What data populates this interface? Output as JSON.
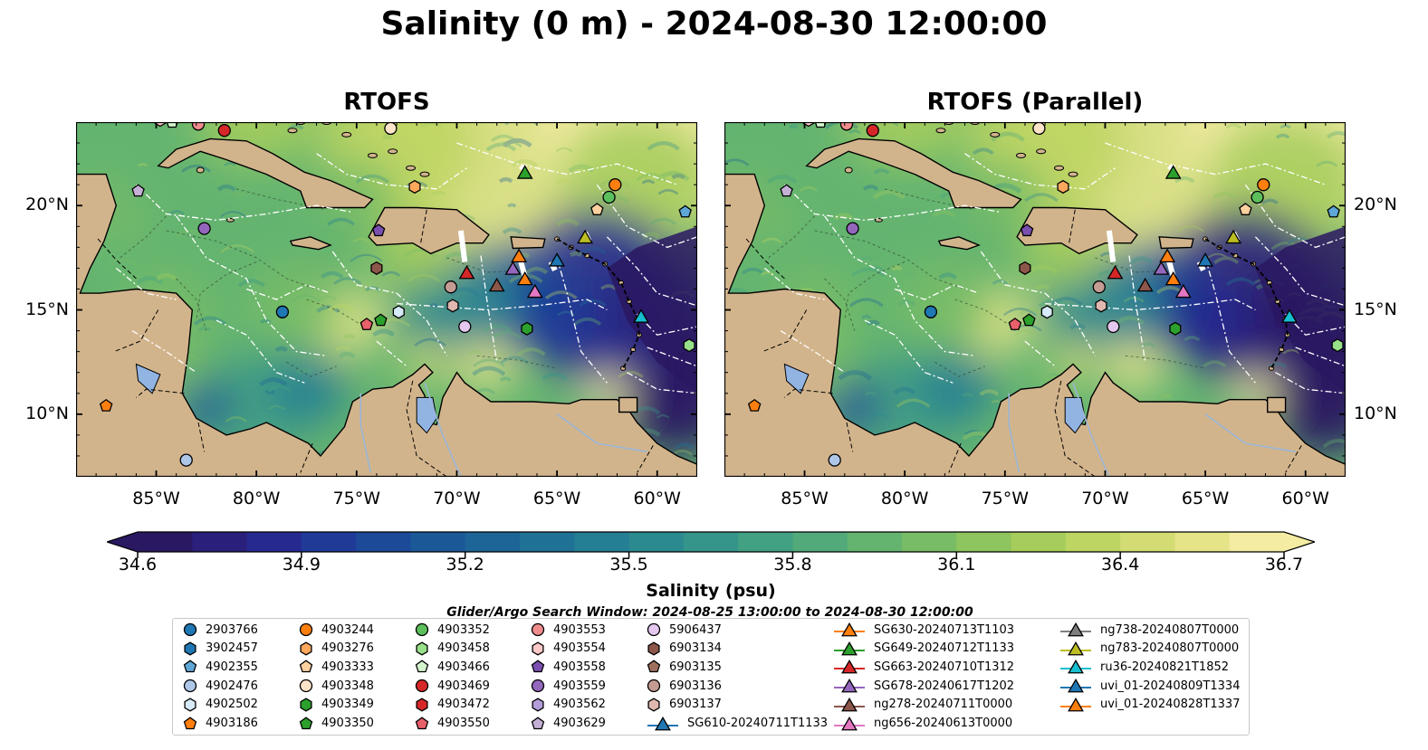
{
  "title": "Salinity (0 m) - 2024-08-30 12:00:00",
  "panels": [
    {
      "title": "RTOFS"
    },
    {
      "title": "RTOFS (Parallel)"
    }
  ],
  "map": {
    "lon_ticks": [
      "85°W",
      "80°W",
      "75°W",
      "70°W",
      "65°W",
      "60°W"
    ],
    "lat_ticks": [
      "20°N",
      "15°N",
      "10°N"
    ],
    "extent": {
      "lon": [
        -89,
        -58
      ],
      "lat": [
        7,
        24
      ]
    },
    "colors": {
      "land": "#d2b48c",
      "lake": "#92b4e3",
      "river": "#9ab6d8",
      "boundary": "#000000",
      "eez": "#ffffff"
    }
  },
  "colorbar": {
    "label": "Salinity (psu)",
    "ticks": [
      "34.6",
      "34.9",
      "35.2",
      "35.5",
      "35.8",
      "36.1",
      "36.4",
      "36.7"
    ],
    "range": [
      34.6,
      36.7
    ],
    "extend": "both",
    "colors": [
      "#2a1862",
      "#2a1f7a",
      "#26298f",
      "#203a97",
      "#1c4a99",
      "#1b5898",
      "#1d6597",
      "#1f7296",
      "#247e94",
      "#2b8a90",
      "#35958a",
      "#42a083",
      "#52aa7a",
      "#64b470",
      "#78bd66",
      "#8ec55e",
      "#a6cd5c",
      "#bdd563",
      "#d2dc72",
      "#e5e488",
      "#f3eca2"
    ]
  },
  "search_window": "Glider/Argo Search Window: 2024-08-25 13:00:00 to 2024-08-30 12:00:00",
  "legend": [
    {
      "label": "2903766",
      "marker": "circle",
      "color": "#1f77b4"
    },
    {
      "label": "3902457",
      "marker": "hexagon",
      "color": "#1f77b4"
    },
    {
      "label": "4902355",
      "marker": "pentagon",
      "color": "#5ea7d6"
    },
    {
      "label": "4902476",
      "marker": "circle",
      "color": "#aec7e8"
    },
    {
      "label": "4902502",
      "marker": "hexagon",
      "color": "#d6eaf8"
    },
    {
      "label": "4903186",
      "marker": "pentagon",
      "color": "#ff7f0e"
    },
    {
      "label": "4903244",
      "marker": "circle",
      "color": "#ff7f0e"
    },
    {
      "label": "4903276",
      "marker": "hexagon",
      "color": "#ffa85c"
    },
    {
      "label": "4903333",
      "marker": "pentagon",
      "color": "#ffd0a0"
    },
    {
      "label": "4903348",
      "marker": "circle",
      "color": "#fde4c8"
    },
    {
      "label": "4903349",
      "marker": "hexagon",
      "color": "#2ca02c"
    },
    {
      "label": "4903350",
      "marker": "pentagon",
      "color": "#2ca02c"
    },
    {
      "label": "4903352",
      "marker": "circle",
      "color": "#5cbf5c"
    },
    {
      "label": "4903458",
      "marker": "hexagon",
      "color": "#98df8a"
    },
    {
      "label": "4903466",
      "marker": "pentagon",
      "color": "#d4f5cc"
    },
    {
      "label": "4903469",
      "marker": "circle",
      "color": "#d62728"
    },
    {
      "label": "4903472",
      "marker": "hexagon",
      "color": "#d62728"
    },
    {
      "label": "4903550",
      "marker": "pentagon",
      "color": "#e8606a"
    },
    {
      "label": "4903553",
      "marker": "circle",
      "color": "#f08c8c"
    },
    {
      "label": "4903554",
      "marker": "hexagon",
      "color": "#fcc8c8"
    },
    {
      "label": "4903558",
      "marker": "pentagon",
      "color": "#7b4fb0"
    },
    {
      "label": "4903559",
      "marker": "circle",
      "color": "#9467bd"
    },
    {
      "label": "4903562",
      "marker": "hexagon",
      "color": "#b39ddb"
    },
    {
      "label": "4903629",
      "marker": "pentagon",
      "color": "#c5b0d5"
    },
    {
      "label": "5906437",
      "marker": "circle",
      "color": "#e4c8f0"
    },
    {
      "label": "6903134",
      "marker": "hexagon",
      "color": "#8c564b"
    },
    {
      "label": "6903135",
      "marker": "pentagon",
      "color": "#a0705e"
    },
    {
      "label": "6903136",
      "marker": "circle",
      "color": "#c49c94"
    },
    {
      "label": "6903137",
      "marker": "hexagon",
      "color": "#e0b8b0"
    },
    {
      "label": "SG610-20240711T1133",
      "marker": "triangle",
      "color": "#1f77b4"
    },
    {
      "label": "SG630-20240713T1103",
      "marker": "triangle",
      "color": "#ff7f0e"
    },
    {
      "label": "SG649-20240712T1133",
      "marker": "triangle",
      "color": "#2ca02c"
    },
    {
      "label": "SG663-20240710T1312",
      "marker": "triangle",
      "color": "#d62728"
    },
    {
      "label": "SG678-20240617T1202",
      "marker": "triangle",
      "color": "#9467bd"
    },
    {
      "label": "ng278-20240711T0000",
      "marker": "triangle",
      "color": "#8c564b"
    },
    {
      "label": "ng656-20240613T0000",
      "marker": "triangle",
      "color": "#e377c2"
    },
    {
      "label": "ng738-20240807T0000",
      "marker": "triangle",
      "color": "#7f7f7f"
    },
    {
      "label": "ng783-20240807T0000",
      "marker": "triangle",
      "color": "#bcbd22"
    },
    {
      "label": "ru36-20240821T1852",
      "marker": "triangle",
      "color": "#17becf"
    },
    {
      "label": "uvi_01-20240809T1334",
      "marker": "triangle",
      "color": "#1f77b4"
    },
    {
      "label": "uvi_01-20240828T1337",
      "marker": "triangle",
      "color": "#ff7f0e"
    }
  ],
  "observations": [
    {
      "id": "2903766",
      "lon": -78.7,
      "lat": 14.9
    },
    {
      "id": "4902476",
      "lon": -83.5,
      "lat": 7.8
    },
    {
      "id": "4903186",
      "lon": -87.5,
      "lat": 10.4
    },
    {
      "id": "4903244",
      "lon": -62.1,
      "lat": 21.0
    },
    {
      "id": "4903333",
      "lon": -63.0,
      "lat": 19.8
    },
    {
      "id": "4903276",
      "lon": -72.1,
      "lat": 20.9
    },
    {
      "id": "4903348",
      "lon": -73.3,
      "lat": 23.7
    },
    {
      "id": "4903352",
      "lon": -62.4,
      "lat": 20.4
    },
    {
      "id": "4903349",
      "lon": -66.5,
      "lat": 14.1
    },
    {
      "id": "4903350",
      "lon": -73.8,
      "lat": 14.5
    },
    {
      "id": "4903458",
      "lon": -58.4,
      "lat": 13.3
    },
    {
      "id": "4903466",
      "lon": -84.2,
      "lat": 24.0
    },
    {
      "id": "4903469",
      "lon": -81.6,
      "lat": 23.6
    },
    {
      "id": "4903550",
      "lon": -74.5,
      "lat": 14.3
    },
    {
      "id": "4903553",
      "lon": -82.9,
      "lat": 23.9
    },
    {
      "id": "4903554",
      "lon": -84.8,
      "lat": 24.1
    },
    {
      "id": "4903558",
      "lon": -73.9,
      "lat": 18.8
    },
    {
      "id": "4903559",
      "lon": -82.6,
      "lat": 18.9
    },
    {
      "id": "4903629",
      "lon": -85.9,
      "lat": 20.7
    },
    {
      "id": "4902355",
      "lon": -58.6,
      "lat": 19.7
    },
    {
      "id": "5906437",
      "lon": -69.6,
      "lat": 14.2
    },
    {
      "id": "6903134",
      "lon": -74.0,
      "lat": 17.0
    },
    {
      "id": "6903136",
      "lon": -70.3,
      "lat": 16.1
    },
    {
      "id": "6903137",
      "lon": -70.2,
      "lat": 15.2
    },
    {
      "id": "4902502",
      "lon": -72.9,
      "lat": 14.9
    },
    {
      "id": "SG649-20240712T1133",
      "lon": -66.6,
      "lat": 21.6
    },
    {
      "id": "ng783-20240807T0000",
      "lon": -63.6,
      "lat": 18.5
    },
    {
      "id": "SG610-20240711T1133",
      "lon": -65.0,
      "lat": 17.4
    },
    {
      "id": "SG630-20240713T1103",
      "lon": -66.9,
      "lat": 17.6
    },
    {
      "id": "SG678-20240617T1202",
      "lon": -67.2,
      "lat": 17.0
    },
    {
      "id": "SG663-20240710T1312",
      "lon": -69.5,
      "lat": 16.8
    },
    {
      "id": "ng278-20240711T0000",
      "lon": -68.0,
      "lat": 16.2
    },
    {
      "id": "uvi_01-20240828T1337",
      "lon": -66.6,
      "lat": 16.5
    },
    {
      "id": "ng656-20240613T0000",
      "lon": -66.1,
      "lat": 15.9
    },
    {
      "id": "ru36-20240821T1852",
      "lon": -60.8,
      "lat": 14.7
    }
  ]
}
